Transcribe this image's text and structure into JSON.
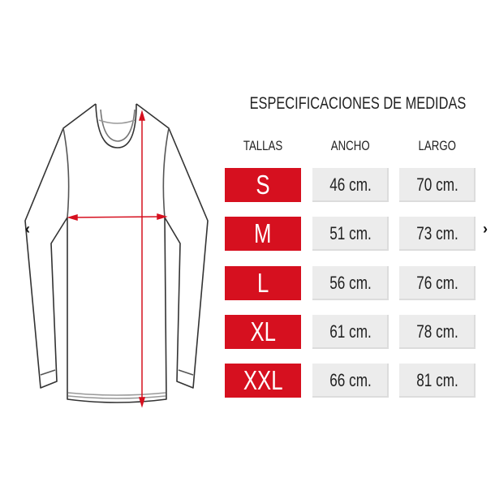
{
  "title": "ESPECIFICACIONES DE MEDIDAS",
  "headers": {
    "size": "TALLAS",
    "width": "ANCHO",
    "length": "LARGO"
  },
  "rows": [
    {
      "size": "S",
      "width": "46 cm.",
      "length": "70 cm."
    },
    {
      "size": "M",
      "width": "51 cm.",
      "length": "73 cm."
    },
    {
      "size": "L",
      "width": "56 cm.",
      "length": "76 cm."
    },
    {
      "size": "XL",
      "width": "61 cm.",
      "length": "78 cm."
    },
    {
      "size": "XXL",
      "width": "66 cm.",
      "length": "81 cm."
    }
  ],
  "nav": {
    "prev": "‹",
    "next": "›"
  },
  "colors": {
    "accent": "#d6101f",
    "cell": "#ececec"
  }
}
